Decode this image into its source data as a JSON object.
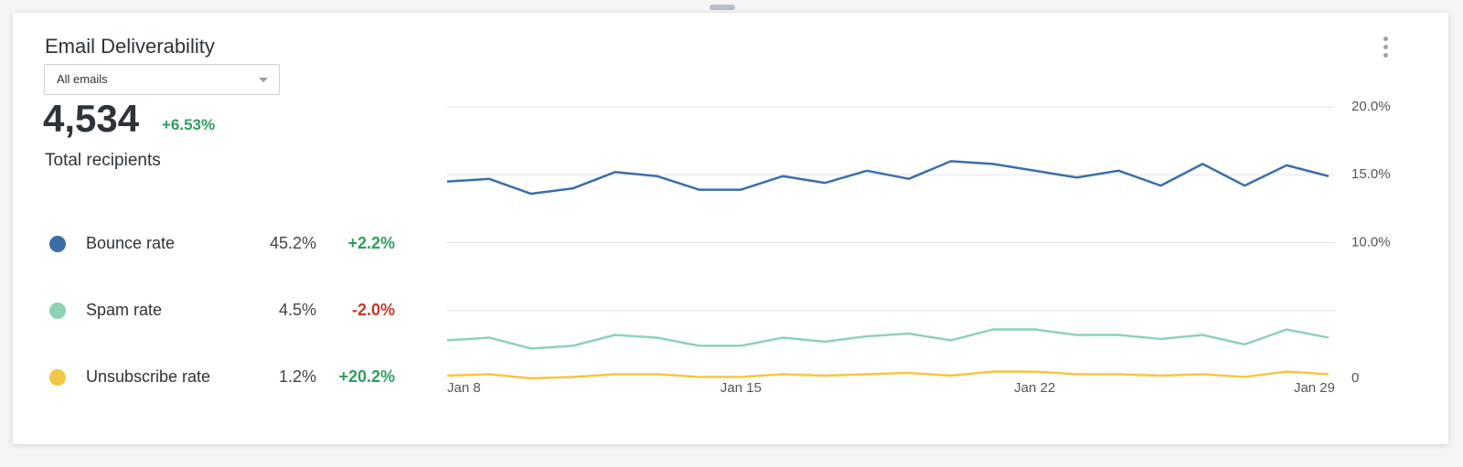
{
  "header": {
    "title": "Email Deliverability",
    "filter": "All emails"
  },
  "summary": {
    "total": "4,534",
    "change": "+6.53%",
    "label": "Total recipients"
  },
  "legend_stats": [
    {
      "rate": "45.2%",
      "change": "+2.2%",
      "color": "#2e9e5e"
    },
    {
      "rate": "4.5%",
      "change": "-2.0%",
      "color": "#c0392b"
    },
    {
      "rate": "1.2%",
      "change": "+20.2%",
      "color": "#2e9e5e"
    }
  ],
  "chart_data": {
    "type": "line",
    "categories": [
      "Jan 8",
      null,
      null,
      null,
      null,
      null,
      null,
      "Jan 15",
      null,
      null,
      null,
      null,
      null,
      null,
      "Jan 22",
      null,
      null,
      null,
      null,
      null,
      null,
      "Jan 29"
    ],
    "series": [
      {
        "name": "Bounce rate",
        "color": "#3b6ea8",
        "values": [
          14.5,
          14.7,
          13.6,
          14.0,
          15.2,
          14.9,
          13.9,
          13.9,
          14.9,
          14.4,
          15.3,
          14.7,
          16.0,
          15.8,
          15.3,
          14.8,
          15.3,
          14.2,
          15.8,
          14.2,
          15.7,
          14.9
        ]
      },
      {
        "name": "Spam rate",
        "color": "#8fd1b5",
        "values": [
          2.8,
          3.0,
          2.2,
          2.4,
          3.2,
          3.0,
          2.4,
          2.4,
          3.0,
          2.7,
          3.1,
          3.3,
          2.8,
          3.6,
          3.6,
          3.2,
          3.2,
          2.9,
          3.2,
          2.5,
          3.6,
          3.0
        ]
      },
      {
        "name": "Unsubscribe rate",
        "color": "#f2c744",
        "values": [
          0.2,
          0.3,
          0.0,
          0.1,
          0.3,
          0.3,
          0.1,
          0.1,
          0.3,
          0.2,
          0.3,
          0.4,
          0.2,
          0.5,
          0.5,
          0.3,
          0.3,
          0.2,
          0.3,
          0.1,
          0.5,
          0.3
        ]
      }
    ],
    "ylim": [
      0,
      20
    ],
    "yticks": [
      0,
      {
        "value": 5,
        "label": ""
      },
      {
        "value": 10,
        "label": "10.0%"
      },
      {
        "value": 15,
        "label": "15.0%"
      },
      {
        "value": 20,
        "label": "20.0%"
      }
    ],
    "grid": true
  }
}
